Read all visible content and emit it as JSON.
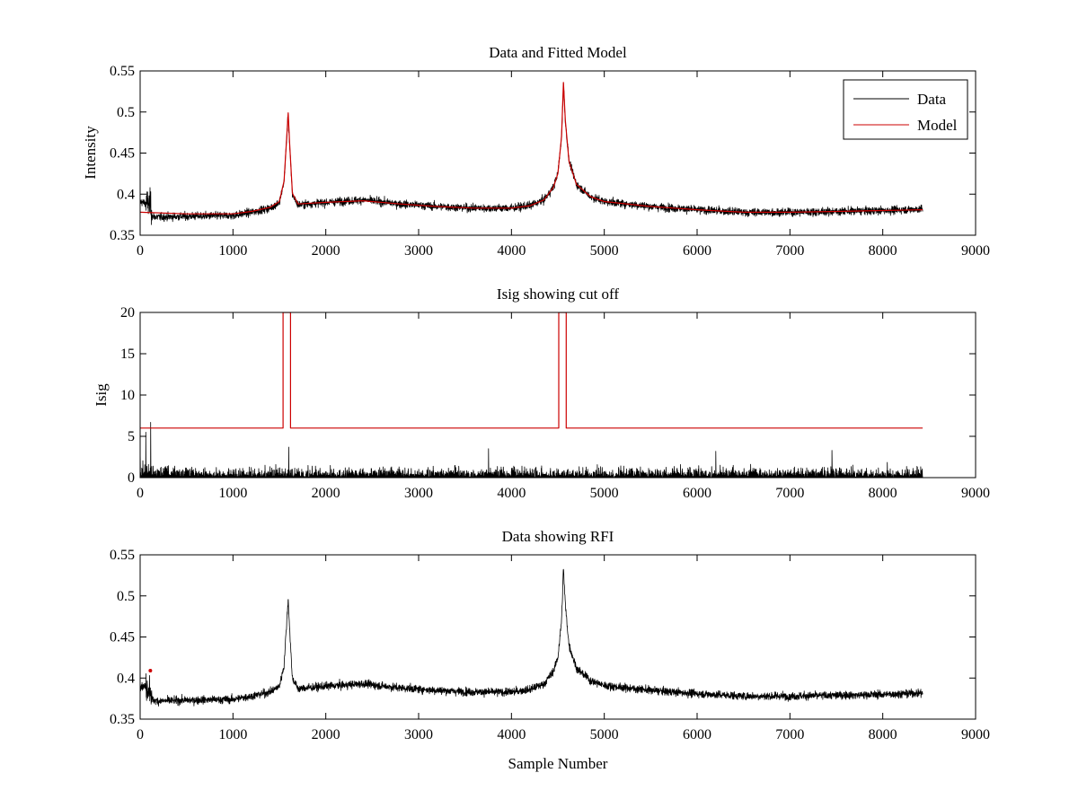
{
  "colors": {
    "data": "#000000",
    "model": "#cc0000",
    "background": "#ffffff"
  },
  "chart_data": [
    {
      "type": "line",
      "title": "Data and Fitted Model",
      "xlabel": "",
      "ylabel": "Intensity",
      "xlim": [
        0,
        9000
      ],
      "ylim": [
        0.35,
        0.55
      ],
      "xticks": [
        0,
        1000,
        2000,
        3000,
        4000,
        5000,
        6000,
        7000,
        8000,
        9000
      ],
      "yticks": [
        0.35,
        0.4,
        0.45,
        0.5,
        0.55
      ],
      "grid": false,
      "legend": {
        "placement": "top-right",
        "entries": [
          "Data",
          "Model"
        ]
      },
      "series": [
        {
          "name": "Data",
          "color": "#000000",
          "style": "noisy-line",
          "noise": 0.004,
          "x": [
            0,
            60,
            110,
            130,
            200,
            500,
            1000,
            1200,
            1400,
            1500,
            1550,
            1580,
            1595,
            1610,
            1640,
            1700,
            2000,
            2400,
            2800,
            3200,
            3600,
            4000,
            4200,
            4350,
            4450,
            4500,
            4540,
            4560,
            4580,
            4620,
            4700,
            4850,
            5000,
            5500,
            6000,
            6500,
            7000,
            7500,
            8000,
            8430
          ],
          "y": [
            0.391,
            0.389,
            0.388,
            0.373,
            0.372,
            0.373,
            0.374,
            0.378,
            0.383,
            0.39,
            0.415,
            0.47,
            0.497,
            0.46,
            0.4,
            0.387,
            0.39,
            0.393,
            0.388,
            0.385,
            0.383,
            0.383,
            0.386,
            0.393,
            0.408,
            0.425,
            0.47,
            0.535,
            0.49,
            0.44,
            0.412,
            0.397,
            0.391,
            0.385,
            0.381,
            0.378,
            0.378,
            0.379,
            0.38,
            0.382
          ]
        },
        {
          "name": "Model",
          "color": "#cc0000",
          "style": "line",
          "x": [
            0,
            500,
            1000,
            1200,
            1400,
            1500,
            1550,
            1580,
            1595,
            1610,
            1640,
            1700,
            2000,
            2400,
            2800,
            3200,
            3600,
            4000,
            4200,
            4350,
            4450,
            4500,
            4540,
            4560,
            4580,
            4620,
            4700,
            4850,
            5000,
            5500,
            6000,
            6500,
            7000,
            7500,
            8000,
            8430
          ],
          "y": [
            0.378,
            0.376,
            0.376,
            0.379,
            0.384,
            0.391,
            0.416,
            0.472,
            0.499,
            0.462,
            0.401,
            0.388,
            0.39,
            0.392,
            0.388,
            0.385,
            0.383,
            0.383,
            0.386,
            0.393,
            0.408,
            0.425,
            0.47,
            0.536,
            0.49,
            0.44,
            0.412,
            0.397,
            0.391,
            0.385,
            0.381,
            0.378,
            0.378,
            0.379,
            0.38,
            0.381
          ]
        }
      ]
    },
    {
      "type": "line",
      "title": "Isig showing cut off",
      "xlabel": "",
      "ylabel": "Isig",
      "xlim": [
        0,
        9000
      ],
      "ylim": [
        0,
        20
      ],
      "xticks": [
        0,
        1000,
        2000,
        3000,
        4000,
        5000,
        6000,
        7000,
        8000,
        9000
      ],
      "yticks": [
        0,
        5,
        10,
        15,
        20
      ],
      "grid": false,
      "series": [
        {
          "name": "",
          "color": "#000000",
          "style": "noise-band",
          "x": [
            0,
            50,
            120,
            200,
            500,
            1000,
            2000,
            3000,
            4000,
            5000,
            6000,
            7000,
            8000,
            8430
          ],
          "y": [
            2.5,
            2.6,
            1.6,
            1.4,
            1.2,
            1.1,
            1.1,
            1.1,
            1.1,
            1.1,
            1.1,
            1.1,
            1.1,
            1.1
          ],
          "spikes": [
            [
              60,
              5.5
            ],
            [
              110,
              6.7
            ],
            [
              1600,
              3.7
            ],
            [
              3750,
              3.5
            ],
            [
              6200,
              3.2
            ],
            [
              7450,
              3.3
            ]
          ]
        },
        {
          "name": "",
          "color": "#cc0000",
          "style": "line",
          "x": [
            0,
            1540,
            1540,
            1620,
            1620,
            4510,
            4510,
            4590,
            4590,
            8430
          ],
          "y": [
            6,
            6,
            20,
            20,
            6,
            6,
            20,
            20,
            6,
            6
          ]
        }
      ]
    },
    {
      "type": "line",
      "title": "Data showing RFI",
      "xlabel": "Sample Number",
      "ylabel": "",
      "xlim": [
        0,
        9000
      ],
      "ylim": [
        0.35,
        0.55
      ],
      "xticks": [
        0,
        1000,
        2000,
        3000,
        4000,
        5000,
        6000,
        7000,
        8000,
        9000
      ],
      "yticks": [
        0.35,
        0.4,
        0.45,
        0.5,
        0.55
      ],
      "grid": false,
      "series": [
        {
          "name": "",
          "color": "#000000",
          "style": "noisy-line",
          "noise": 0.004,
          "x": [
            0,
            60,
            110,
            130,
            200,
            500,
            1000,
            1200,
            1400,
            1500,
            1550,
            1580,
            1595,
            1610,
            1640,
            1700,
            2000,
            2400,
            2800,
            3200,
            3600,
            4000,
            4200,
            4350,
            4450,
            4500,
            4540,
            4560,
            4580,
            4620,
            4700,
            4850,
            5000,
            5500,
            6000,
            6500,
            7000,
            7500,
            8000,
            8430
          ],
          "y": [
            0.391,
            0.389,
            0.388,
            0.373,
            0.372,
            0.373,
            0.374,
            0.378,
            0.383,
            0.39,
            0.415,
            0.47,
            0.497,
            0.46,
            0.4,
            0.387,
            0.39,
            0.393,
            0.388,
            0.385,
            0.383,
            0.383,
            0.386,
            0.393,
            0.408,
            0.425,
            0.47,
            0.535,
            0.49,
            0.44,
            0.412,
            0.397,
            0.391,
            0.385,
            0.381,
            0.378,
            0.378,
            0.379,
            0.38,
            0.382
          ]
        },
        {
          "name": "",
          "color": "#cc0000",
          "style": "markers",
          "x": [
            110
          ],
          "y": [
            0.409
          ]
        }
      ]
    }
  ]
}
